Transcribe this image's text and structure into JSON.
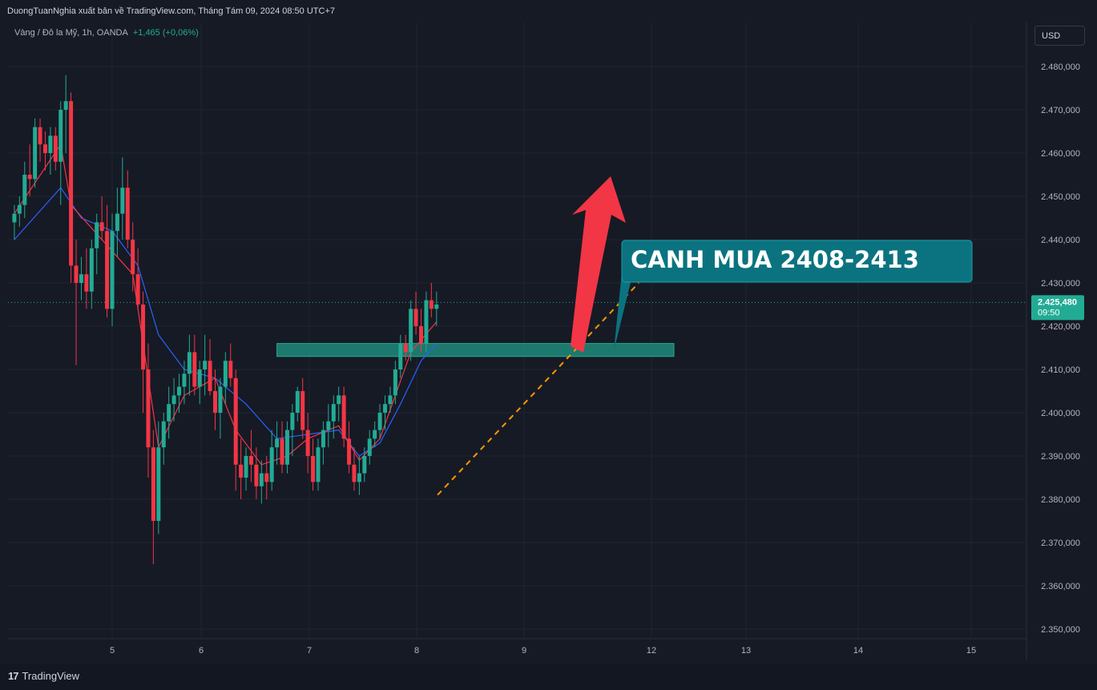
{
  "header": {
    "publisher_line": "DuongTuanNghia xuất bản về TradingView.com, Tháng Tám 09, 2024 08:50 UTC+7",
    "symbol": "Vàng / Đô la Mỹ, 1h, OANDA",
    "change": "+1,465 (+0,06%)",
    "currency_button": "USD"
  },
  "footer": {
    "logo_text": "TradingView",
    "logo_mark": "17"
  },
  "colors": {
    "background": "#161a25",
    "bull": "#22ab94",
    "bear": "#f23645",
    "ema_fast": "#f23645",
    "ema_slow": "#2962ff",
    "zone": "#1f8a7a",
    "callout": "#0b7380",
    "trendline": "#ff9800",
    "arrow": "#f23645"
  },
  "chart_data": {
    "type": "candlestick",
    "x_tick_labels": [
      "5",
      "6",
      "7",
      "8",
      "9",
      "12",
      "13",
      "14",
      "15"
    ],
    "y_tick_labels": [
      "2.480,000",
      "2.470,000",
      "2.460,000",
      "2.450,000",
      "2.440,000",
      "2.430,000",
      "2.420,000",
      "2.410,000",
      "2.400,000",
      "2.390,000",
      "2.380,000",
      "2.370,000",
      "2.360,000",
      "2.350,000"
    ],
    "ylim": [
      2350,
      2480
    ],
    "last_price_label": "2.425,480",
    "countdown_label": "09:50",
    "last_price": 2425.48,
    "zone": {
      "low": 2413,
      "high": 2416,
      "from_day": 6.6,
      "to_day": 12.2
    },
    "trendline": {
      "from": [
        8.16,
        2381
      ],
      "to": [
        11.7,
        2430
      ]
    },
    "callout_text": "CANH MUA 2408-2413",
    "candles": [
      [
        4.05,
        2444,
        2448,
        2440,
        2446
      ],
      [
        4.1,
        2446,
        2450,
        2443,
        2448
      ],
      [
        4.15,
        2448,
        2458,
        2445,
        2455
      ],
      [
        4.2,
        2455,
        2462,
        2450,
        2454
      ],
      [
        4.25,
        2454,
        2468,
        2452,
        2466
      ],
      [
        4.3,
        2466,
        2468,
        2458,
        2462
      ],
      [
        4.35,
        2462,
        2465,
        2456,
        2460
      ],
      [
        4.4,
        2460,
        2466,
        2455,
        2464
      ],
      [
        4.45,
        2464,
        2466,
        2456,
        2458
      ],
      [
        4.5,
        2458,
        2472,
        2448,
        2470
      ],
      [
        4.55,
        2470,
        2478,
        2460,
        2472
      ],
      [
        4.6,
        2472,
        2474,
        2430,
        2434
      ],
      [
        4.65,
        2434,
        2440,
        2411,
        2430
      ],
      [
        4.7,
        2430,
        2436,
        2426,
        2432
      ],
      [
        4.75,
        2432,
        2438,
        2424,
        2428
      ],
      [
        4.8,
        2428,
        2440,
        2424,
        2438
      ],
      [
        4.85,
        2438,
        2446,
        2432,
        2444
      ],
      [
        4.9,
        2444,
        2450,
        2440,
        2442
      ],
      [
        4.95,
        2442,
        2448,
        2422,
        2424
      ],
      [
        5.0,
        2424,
        2446,
        2420,
        2442
      ],
      [
        5.05,
        2442,
        2452,
        2436,
        2446
      ],
      [
        5.1,
        2446,
        2459,
        2440,
        2452
      ],
      [
        5.15,
        2452,
        2456,
        2438,
        2440
      ],
      [
        5.2,
        2440,
        2444,
        2428,
        2432
      ],
      [
        5.25,
        2432,
        2438,
        2424,
        2425
      ],
      [
        5.3,
        2425,
        2428,
        2400,
        2410
      ],
      [
        5.35,
        2410,
        2416,
        2385,
        2392
      ],
      [
        5.4,
        2392,
        2396,
        2365,
        2375
      ],
      [
        5.45,
        2375,
        2398,
        2372,
        2392
      ],
      [
        5.5,
        2392,
        2400,
        2388,
        2398
      ],
      [
        5.55,
        2398,
        2406,
        2394,
        2402
      ],
      [
        5.6,
        2402,
        2408,
        2398,
        2404
      ],
      [
        5.65,
        2404,
        2409,
        2400,
        2406
      ],
      [
        5.7,
        2406,
        2412,
        2402,
        2409
      ],
      [
        5.75,
        2409,
        2418,
        2404,
        2414
      ],
      [
        5.8,
        2414,
        2418,
        2404,
        2406
      ],
      [
        5.85,
        2406,
        2412,
        2402,
        2410
      ],
      [
        5.9,
        2410,
        2418,
        2404,
        2412
      ],
      [
        5.95,
        2412,
        2417,
        2404,
        2405
      ],
      [
        6.0,
        2405,
        2410,
        2396,
        2400
      ],
      [
        6.05,
        2400,
        2408,
        2394,
        2406
      ],
      [
        6.1,
        2406,
        2414,
        2402,
        2412
      ],
      [
        6.15,
        2412,
        2416,
        2406,
        2408
      ],
      [
        6.2,
        2408,
        2410,
        2382,
        2388
      ],
      [
        6.25,
        2388,
        2394,
        2380,
        2385
      ],
      [
        6.3,
        2385,
        2392,
        2382,
        2390
      ],
      [
        6.35,
        2390,
        2396,
        2384,
        2388
      ],
      [
        6.4,
        2388,
        2392,
        2380,
        2383
      ],
      [
        6.45,
        2383,
        2389,
        2379,
        2386
      ],
      [
        6.5,
        2386,
        2390,
        2380,
        2384
      ],
      [
        6.55,
        2384,
        2396,
        2382,
        2392
      ],
      [
        6.6,
        2392,
        2398,
        2388,
        2394
      ],
      [
        6.65,
        2394,
        2398,
        2386,
        2388
      ],
      [
        6.7,
        2388,
        2398,
        2386,
        2396
      ],
      [
        6.75,
        2396,
        2402,
        2390,
        2400
      ],
      [
        6.8,
        2400,
        2406,
        2398,
        2405
      ],
      [
        6.85,
        2405,
        2408,
        2394,
        2396
      ],
      [
        6.9,
        2396,
        2400,
        2386,
        2390
      ],
      [
        6.95,
        2390,
        2394,
        2382,
        2384
      ],
      [
        7.0,
        2384,
        2394,
        2382,
        2392
      ],
      [
        7.05,
        2392,
        2398,
        2388,
        2396
      ],
      [
        7.1,
        2396,
        2402,
        2392,
        2398
      ],
      [
        7.15,
        2398,
        2404,
        2394,
        2402
      ],
      [
        7.2,
        2402,
        2406,
        2398,
        2404
      ],
      [
        7.25,
        2404,
        2406,
        2392,
        2394
      ],
      [
        7.3,
        2394,
        2398,
        2386,
        2388
      ],
      [
        7.35,
        2388,
        2392,
        2382,
        2384
      ],
      [
        7.4,
        2384,
        2390,
        2381,
        2386
      ],
      [
        7.45,
        2386,
        2392,
        2384,
        2390
      ],
      [
        7.5,
        2390,
        2396,
        2388,
        2394
      ],
      [
        7.55,
        2394,
        2398,
        2392,
        2396
      ],
      [
        7.6,
        2396,
        2402,
        2394,
        2400
      ],
      [
        7.65,
        2400,
        2404,
        2396,
        2402
      ],
      [
        7.7,
        2402,
        2406,
        2400,
        2404
      ],
      [
        7.75,
        2404,
        2412,
        2402,
        2410
      ],
      [
        7.8,
        2410,
        2418,
        2408,
        2416
      ],
      [
        7.85,
        2416,
        2418,
        2412,
        2414
      ],
      [
        7.9,
        2414,
        2426,
        2412,
        2424
      ],
      [
        7.95,
        2424,
        2428,
        2418,
        2420
      ],
      [
        8.0,
        2420,
        2424,
        2414,
        2416
      ],
      [
        8.05,
        2416,
        2428,
        2414,
        2426
      ],
      [
        8.1,
        2426,
        2430,
        2422,
        2424
      ],
      [
        8.15,
        2424,
        2428,
        2420,
        2425
      ]
    ],
    "ema_fast": [
      [
        4.05,
        2446
      ],
      [
        4.5,
        2462
      ],
      [
        4.6,
        2448
      ],
      [
        4.9,
        2440
      ],
      [
        5.2,
        2432
      ],
      [
        5.45,
        2392
      ],
      [
        5.7,
        2404
      ],
      [
        6.0,
        2408
      ],
      [
        6.2,
        2396
      ],
      [
        6.45,
        2388
      ],
      [
        6.7,
        2390
      ],
      [
        6.9,
        2394
      ],
      [
        7.2,
        2397
      ],
      [
        7.4,
        2389
      ],
      [
        7.6,
        2394
      ],
      [
        7.75,
        2404
      ],
      [
        7.9,
        2414
      ],
      [
        8.15,
        2421
      ]
    ],
    "ema_slow": [
      [
        4.05,
        2440
      ],
      [
        4.5,
        2452
      ],
      [
        4.7,
        2445
      ],
      [
        5.0,
        2442
      ],
      [
        5.25,
        2434
      ],
      [
        5.45,
        2418
      ],
      [
        5.7,
        2410
      ],
      [
        6.0,
        2408
      ],
      [
        6.3,
        2402
      ],
      [
        6.6,
        2394
      ],
      [
        6.9,
        2395
      ],
      [
        7.2,
        2396
      ],
      [
        7.4,
        2390
      ],
      [
        7.6,
        2393
      ],
      [
        7.8,
        2402
      ],
      [
        8.0,
        2412
      ],
      [
        8.15,
        2416
      ]
    ]
  }
}
